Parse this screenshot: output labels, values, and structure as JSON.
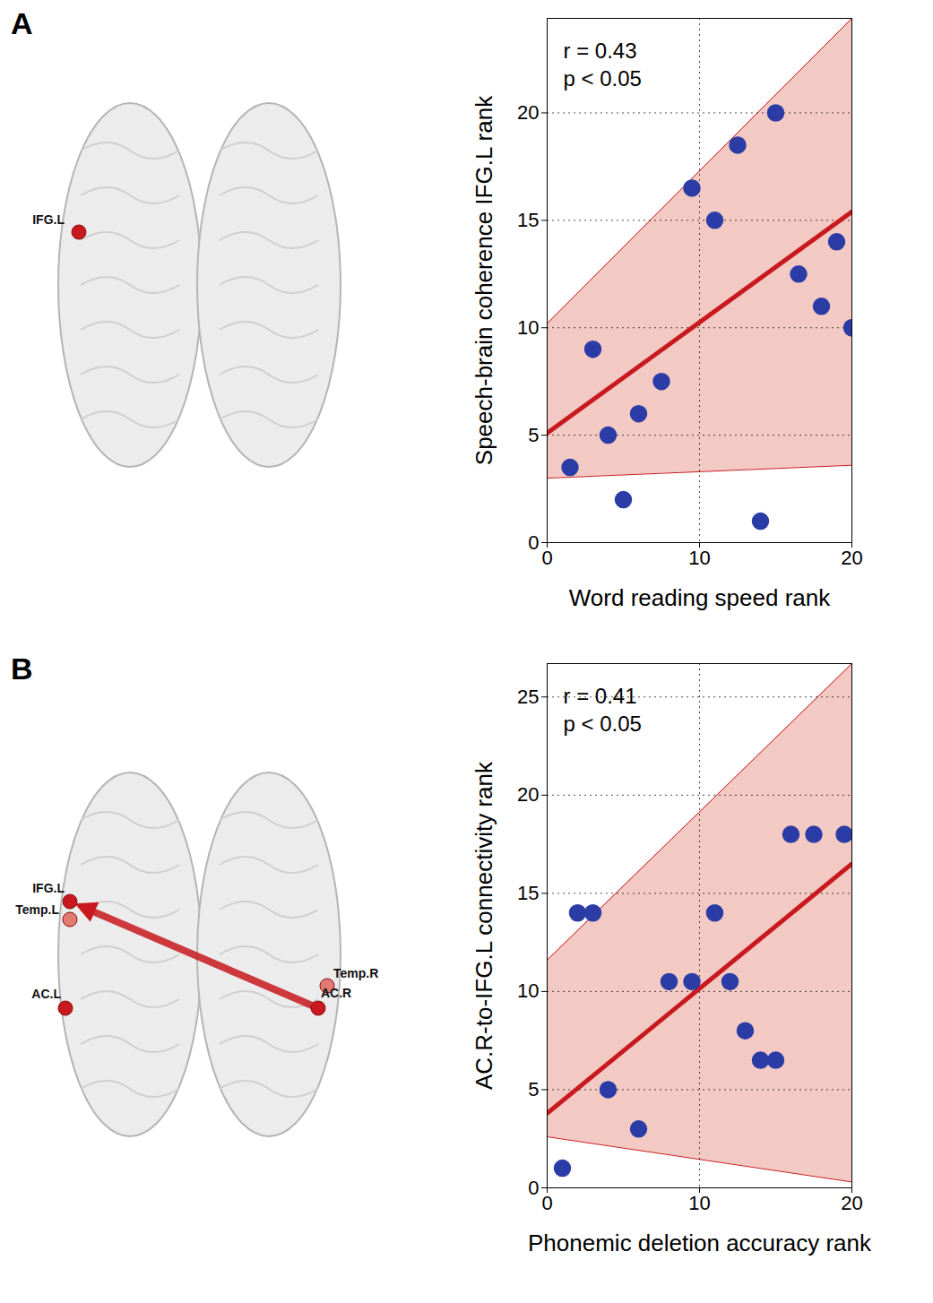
{
  "chart_data": [
    {
      "type": "scatter",
      "panel_label": "A",
      "x_label": "Word reading speed rank",
      "y_label": "Speech-brain coherence IFG.L rank",
      "annotations": [
        "r = 0.43",
        "p < 0.05"
      ],
      "xlim": [
        0,
        20
      ],
      "xticks": [
        0,
        10,
        20
      ],
      "ylim": [
        0,
        24.4
      ],
      "yticks": [
        0,
        5,
        10,
        15,
        20
      ],
      "grid": true,
      "points": {
        "marker": "circle",
        "color": "#2b3ca6",
        "x": [
          1.5,
          3,
          4,
          5,
          6,
          7.5,
          9.5,
          11,
          12.5,
          14,
          15,
          16.5,
          18,
          19,
          20
        ],
        "y": [
          3.5,
          9,
          5,
          2,
          6,
          7.5,
          16.5,
          15,
          18.5,
          1,
          20,
          12.5,
          11,
          14,
          10
        ]
      },
      "fit": {
        "color": "#c8191e",
        "x": [
          0,
          20
        ],
        "y": [
          5.1,
          15.4
        ]
      },
      "band": {
        "color": "#f3c9c4",
        "x": [
          0,
          20
        ],
        "lower": [
          3.0,
          3.6
        ],
        "upper": [
          10.2,
          24.4
        ]
      }
    },
    {
      "type": "scatter",
      "panel_label": "B",
      "x_label": "Phonemic deletion accuracy rank",
      "y_label": "AC.R-to-IFG.L connectivity rank",
      "annotations": [
        "r = 0.41",
        "p < 0.05"
      ],
      "xlim": [
        0,
        20
      ],
      "xticks": [
        0,
        10,
        20
      ],
      "ylim": [
        0,
        26.7
      ],
      "yticks": [
        0,
        5,
        10,
        15,
        20,
        25
      ],
      "grid": true,
      "points": {
        "marker": "circle",
        "color": "#2b3ca6",
        "x": [
          1,
          2,
          3,
          4,
          6,
          8,
          9.5,
          11,
          12,
          13,
          14,
          15,
          16,
          17.5,
          19.5
        ],
        "y": [
          1,
          14,
          14,
          5,
          3,
          10.5,
          10.5,
          14,
          10.5,
          8,
          6.5,
          6.5,
          18,
          18,
          18
        ]
      },
      "fit": {
        "color": "#c8191e",
        "x": [
          0,
          20
        ],
        "y": [
          3.8,
          16.5
        ]
      },
      "band": {
        "color": "#f3c9c4",
        "x": [
          0,
          20
        ],
        "lower": [
          2.6,
          0.3
        ],
        "upper": [
          11.6,
          26.7
        ]
      }
    }
  ],
  "diagrams": [
    {
      "nodes": [
        {
          "label": "IFG.L"
        }
      ],
      "edges": []
    },
    {
      "nodes": [
        {
          "label": "IFG.L"
        },
        {
          "label": "Temp.L"
        },
        {
          "label": "AC.L"
        },
        {
          "label": "Temp.R"
        },
        {
          "label": "AC.R"
        }
      ],
      "edges": [
        {
          "from": "AC.R",
          "to": "IFG.L"
        }
      ]
    }
  ]
}
